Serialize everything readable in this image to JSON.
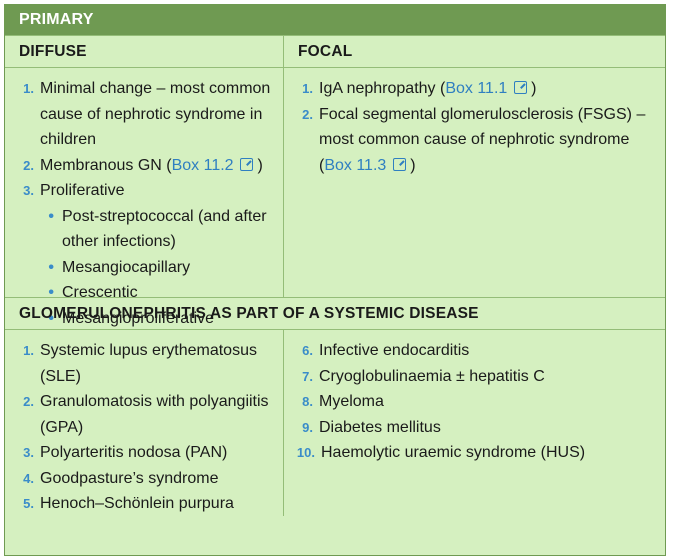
{
  "primary_label": "PRIMARY",
  "diffuse": {
    "heading": "DIFFUSE",
    "items": [
      {
        "n": "1.",
        "text": "Minimal change – most common cause of nephrotic syndrome in children"
      },
      {
        "n": "2.",
        "text": "Membranous GN (",
        "link": "Box 11.2",
        "after": " )"
      },
      {
        "n": "3.",
        "text": "Proliferative"
      }
    ],
    "subitems": [
      "Post-streptococcal (and after other infections)",
      "Mesangiocapillary",
      "Crescentic",
      "Mesangioproliferative"
    ]
  },
  "focal": {
    "heading": "FOCAL",
    "items": [
      {
        "n": "1.",
        "text": "IgA nephropathy (",
        "link": "Box 11.1",
        "after": " )"
      },
      {
        "n": "2.",
        "text": "Focal segmental glomerulosclerosis (FSGS) – most common cause of nephrotic syndrome (",
        "link": "Box 11.3",
        "after": " )"
      }
    ]
  },
  "systemic": {
    "heading": "GLOMERULONEPHRITIS AS PART OF A SYSTEMIC DISEASE",
    "left": [
      {
        "n": "1.",
        "text": "Systemic lupus erythematosus (SLE)"
      },
      {
        "n": "2.",
        "text": "Granulomatosis with polyangiitis (GPA)"
      },
      {
        "n": "3.",
        "text": "Polyarteritis nodosa (PAN)"
      },
      {
        "n": "4.",
        "text": "Goodpasture’s syndrome"
      },
      {
        "n": "5.",
        "text": "Henoch–Schönlein purpura"
      }
    ],
    "right": [
      {
        "n": "6.",
        "text": "Infective endocarditis"
      },
      {
        "n": "7.",
        "text": "Cryoglobulinaemia  ±  hepatitis C"
      },
      {
        "n": "8.",
        "text": "Myeloma"
      },
      {
        "n": "9.",
        "text": "Diabetes mellitus"
      },
      {
        "n": "10.",
        "text": "Haemolytic uraemic syndrome (HUS)"
      }
    ]
  },
  "icons": {
    "link_icon": "external-link-icon",
    "bullet": "bullet-dot"
  },
  "colors": {
    "header_bg": "#6f9a52",
    "panel_bg": "#d5f0c0",
    "link": "#2f7fc1",
    "numbers": "#3a8cc9"
  }
}
